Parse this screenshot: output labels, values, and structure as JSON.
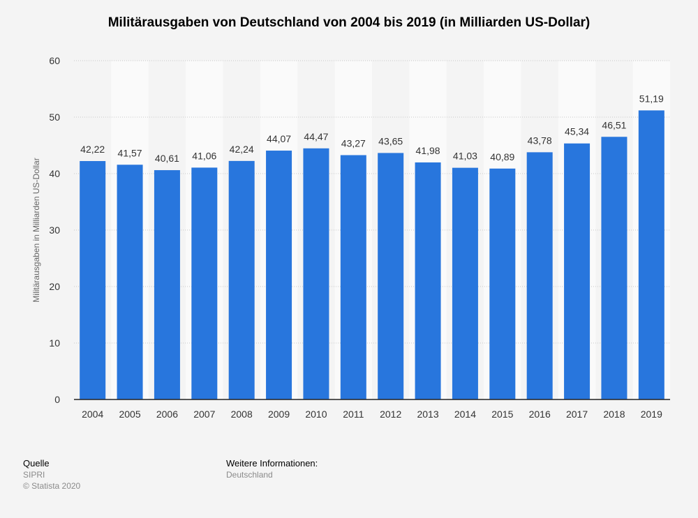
{
  "chart_data": {
    "type": "bar",
    "title": "Militärausgaben von Deutschland von 2004 bis 2019 (in Milliarden US-Dollar)",
    "xlabel": "",
    "ylabel": "Militärausgaben in Milliarden US-Dollar",
    "ylim": [
      0,
      60
    ],
    "yticks": [
      0,
      10,
      20,
      30,
      40,
      50,
      60
    ],
    "grid": true,
    "categories": [
      "2004",
      "2005",
      "2006",
      "2007",
      "2008",
      "2009",
      "2010",
      "2011",
      "2012",
      "2013",
      "2014",
      "2015",
      "2016",
      "2017",
      "2018",
      "2019"
    ],
    "values": [
      42.22,
      41.57,
      40.61,
      41.06,
      42.24,
      44.07,
      44.47,
      43.27,
      43.65,
      41.98,
      41.03,
      40.89,
      43.78,
      45.34,
      46.51,
      51.19
    ],
    "data_labels": [
      "42,22",
      "41,57",
      "40,61",
      "41,06",
      "42,24",
      "44,07",
      "44,47",
      "43,27",
      "43,65",
      "41,98",
      "41,03",
      "40,89",
      "43,78",
      "45,34",
      "46,51",
      "51,19"
    ],
    "colors": {
      "bar": "#2876dd",
      "stripe_light": "#fafafa",
      "background": "#f4f4f4"
    }
  },
  "footer": {
    "source_heading": "Quelle",
    "source": "SIPRI",
    "copyright": "© Statista 2020",
    "info_heading": "Weitere Informationen:",
    "info": "Deutschland"
  }
}
